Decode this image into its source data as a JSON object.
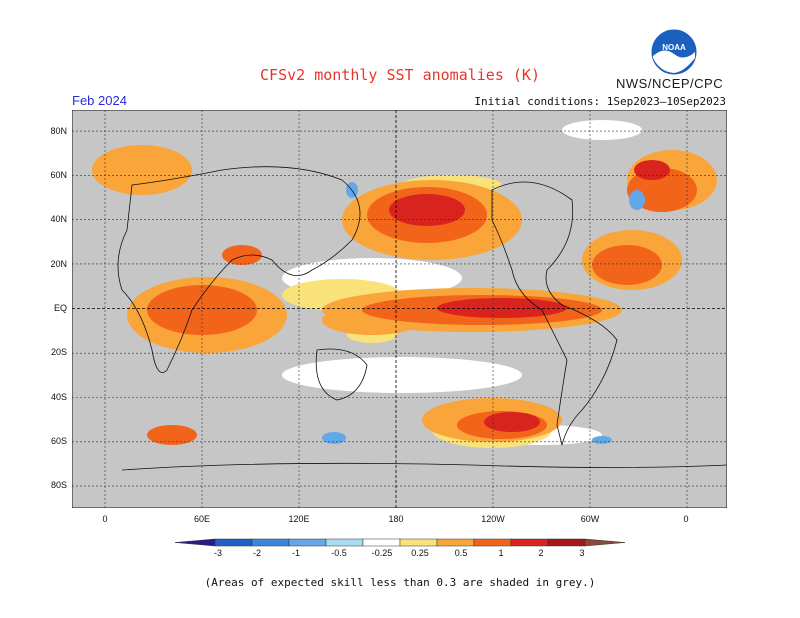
{
  "header": {
    "title": "CFSv2 monthly SST anomalies (K)",
    "agency": "NWS/NCEP/CPC",
    "logo_text": "NOAA",
    "month": "Feb 2024",
    "initial_conditions": "Initial conditions: 1Sep2023–10Sep2023"
  },
  "axes": {
    "lat_labels": [
      "80N",
      "60N",
      "40N",
      "20N",
      "EQ",
      "20S",
      "40S",
      "60S",
      "80S"
    ],
    "lon_labels": [
      "0",
      "60E",
      "120E",
      "180",
      "120W",
      "60W",
      "0"
    ]
  },
  "colorbar": {
    "labels": [
      "-3",
      "-2",
      "-1",
      "-0.5",
      "-0.25",
      "0.25",
      "0.5",
      "1",
      "2",
      "3"
    ],
    "colors": [
      "#2b1b8a",
      "#1f5fc8",
      "#3a86d9",
      "#62a8e8",
      "#a9dcf0",
      "#ffffff",
      "#f9e27a",
      "#f9a53a",
      "#f2641a",
      "#d9231f",
      "#a8161b",
      "#8a4a3a"
    ]
  },
  "footnote": "(Areas of expected skill less than 0.3 are shaded in grey.)",
  "colors": {
    "land": "#c6c6c6",
    "title": "#e8352b",
    "month": "#2d2bd6"
  }
}
